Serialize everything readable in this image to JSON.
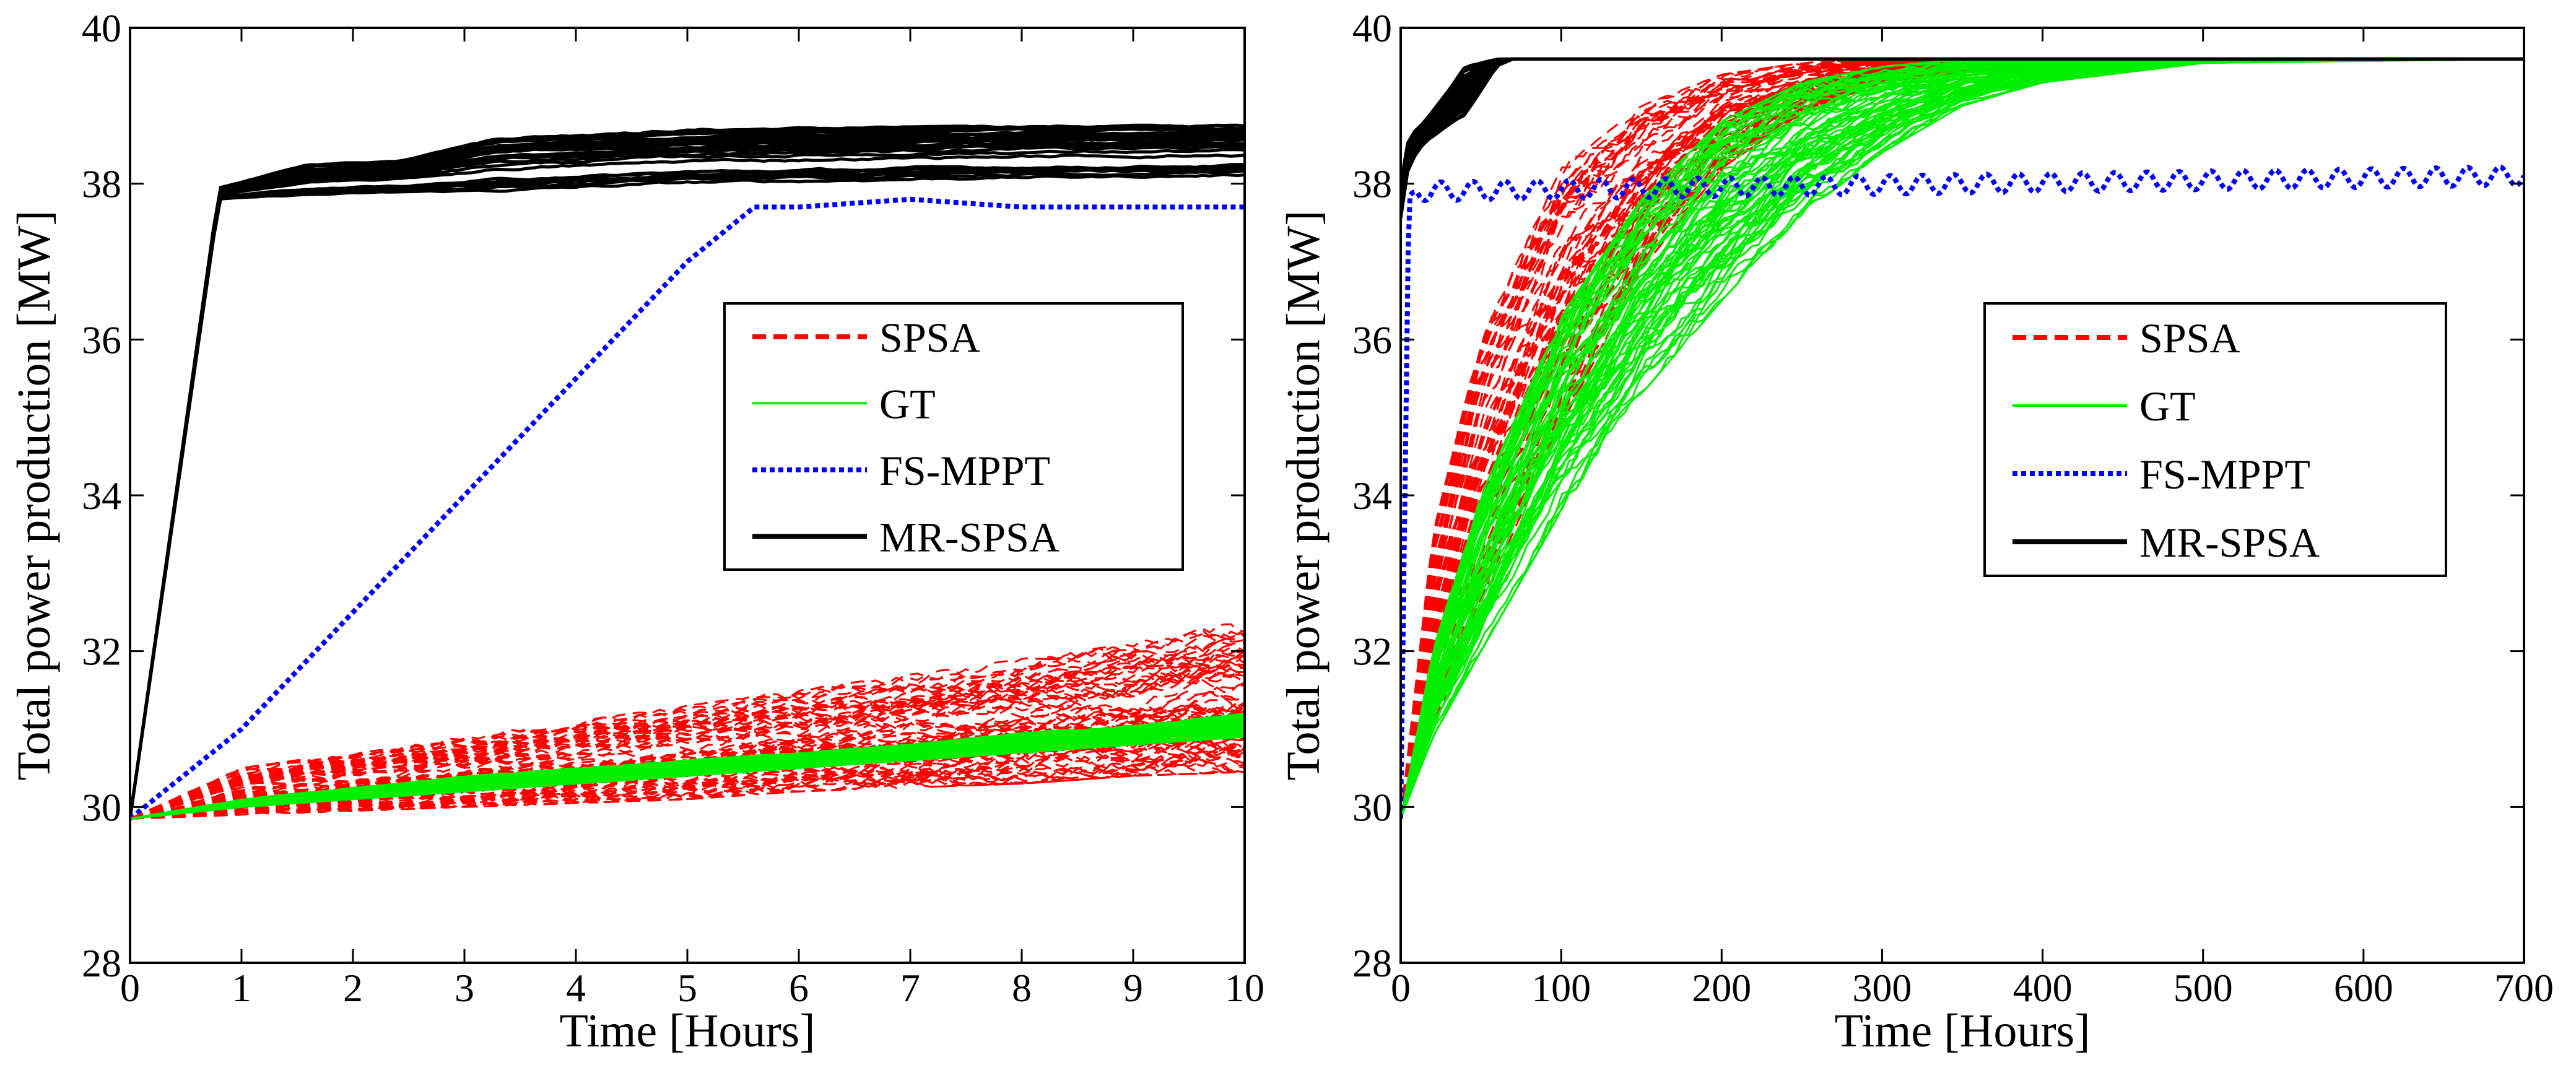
{
  "chart_data": [
    {
      "type": "line",
      "xlabel": "Time [Hours]",
      "ylabel": "Total power production [MW]",
      "xlim": [
        0,
        10
      ],
      "ylim": [
        28,
        40
      ],
      "xticks": [
        "0",
        "1",
        "2",
        "3",
        "4",
        "5",
        "6",
        "7",
        "8",
        "9",
        "10"
      ],
      "yticks": [
        "28",
        "30",
        "32",
        "34",
        "36",
        "38",
        "40"
      ],
      "grid": false,
      "legend_position": "center-right",
      "legend": [
        {
          "name": "SPSA",
          "color": "#ff0000",
          "style": "dashed"
        },
        {
          "name": "GT",
          "color": "#00ee00",
          "style": "solid"
        },
        {
          "name": "FS-MPPT",
          "color": "#0000ff",
          "style": "dotted"
        },
        {
          "name": "MR-SPSA",
          "color": "#000000",
          "style": "solid"
        }
      ],
      "series": [
        {
          "name": "MR-SPSA",
          "color": "#000000",
          "style": "solid",
          "band": true,
          "x": [
            0,
            0.8,
            1.6,
            2.4,
            3.3,
            4.2,
            5,
            6,
            7,
            8,
            9,
            10
          ],
          "lower": [
            29.85,
            37.8,
            37.85,
            37.88,
            37.9,
            37.95,
            38.0,
            38.02,
            38.05,
            38.07,
            38.08,
            38.1
          ],
          "upper": [
            29.85,
            37.95,
            38.25,
            38.3,
            38.6,
            38.65,
            38.7,
            38.72,
            38.73,
            38.75,
            38.75,
            38.75
          ]
        },
        {
          "name": "FS-MPPT",
          "color": "#0000ff",
          "style": "dotted",
          "band": false,
          "x": [
            0,
            1,
            2,
            3,
            4,
            5,
            5.6,
            6,
            6.5,
            7,
            7.5,
            8,
            9,
            10
          ],
          "y": [
            29.85,
            31.0,
            32.5,
            34.0,
            35.5,
            37.0,
            37.7,
            37.7,
            37.75,
            37.8,
            37.75,
            37.7,
            37.7,
            37.7
          ]
        },
        {
          "name": "SPSA",
          "color": "#ff0000",
          "style": "dashed",
          "band": true,
          "x": [
            0,
            1,
            2,
            3,
            4,
            5,
            6,
            7,
            8,
            9,
            10
          ],
          "lower": [
            29.85,
            29.9,
            29.95,
            30.0,
            30.05,
            30.1,
            30.2,
            30.25,
            30.3,
            30.4,
            30.45
          ],
          "upper": [
            29.85,
            30.5,
            30.7,
            30.9,
            31.1,
            31.3,
            31.5,
            31.7,
            31.9,
            32.1,
            32.4
          ]
        },
        {
          "name": "GT",
          "color": "#00ee00",
          "style": "solid",
          "band": true,
          "x": [
            0,
            1,
            2,
            3,
            4,
            5,
            6,
            7,
            8,
            9,
            10
          ],
          "lower": [
            29.85,
            30.0,
            30.1,
            30.2,
            30.3,
            30.4,
            30.5,
            30.6,
            30.7,
            30.8,
            30.9
          ],
          "upper": [
            29.85,
            30.1,
            30.25,
            30.4,
            30.5,
            30.6,
            30.7,
            30.8,
            30.95,
            31.05,
            31.2
          ]
        }
      ]
    },
    {
      "type": "line",
      "xlabel": "Time [Hours]",
      "ylabel": "Total power production [MW]",
      "xlim": [
        0,
        700
      ],
      "ylim": [
        28,
        40
      ],
      "xticks": [
        "0",
        "100",
        "200",
        "300",
        "400",
        "500",
        "600",
        "700"
      ],
      "yticks": [
        "28",
        "30",
        "32",
        "34",
        "36",
        "38",
        "40"
      ],
      "grid": false,
      "legend_position": "center-right",
      "legend": [
        {
          "name": "SPSA",
          "color": "#ff0000",
          "style": "dashed"
        },
        {
          "name": "GT",
          "color": "#00ee00",
          "style": "solid"
        },
        {
          "name": "FS-MPPT",
          "color": "#0000ff",
          "style": "dotted"
        },
        {
          "name": "MR-SPSA",
          "color": "#000000",
          "style": "solid"
        }
      ],
      "series": [
        {
          "name": "SPSA",
          "color": "#ff0000",
          "style": "dashed",
          "band": true,
          "x": [
            0,
            20,
            50,
            100,
            150,
            200,
            250,
            300,
            400,
            500,
            700
          ],
          "lower": [
            29.85,
            31.0,
            32.6,
            34.9,
            36.9,
            38.2,
            38.9,
            39.3,
            39.55,
            39.6,
            39.6
          ],
          "upper": [
            29.85,
            33.5,
            36.0,
            38.2,
            39.0,
            39.4,
            39.55,
            39.6,
            39.6,
            39.6,
            39.6
          ]
        },
        {
          "name": "GT",
          "color": "#00ee00",
          "style": "solid",
          "band": true,
          "x": [
            0,
            20,
            50,
            100,
            150,
            200,
            250,
            300,
            350,
            400,
            500,
            700
          ],
          "lower": [
            29.85,
            30.9,
            32.0,
            33.8,
            35.3,
            36.5,
            37.6,
            38.4,
            39.0,
            39.3,
            39.55,
            39.6
          ],
          "upper": [
            29.85,
            32.0,
            34.0,
            36.3,
            37.8,
            38.8,
            39.3,
            39.5,
            39.6,
            39.6,
            39.6,
            39.6
          ]
        },
        {
          "name": "MR-SPSA",
          "color": "#000000",
          "style": "solid",
          "band": true,
          "x": [
            0,
            5,
            15,
            30,
            40,
            60,
            70,
            700
          ],
          "lower": [
            37.5,
            38.2,
            38.5,
            38.7,
            38.8,
            39.5,
            39.6,
            39.6
          ],
          "upper": [
            38.0,
            38.6,
            38.8,
            39.2,
            39.5,
            39.6,
            39.6,
            39.6
          ]
        },
        {
          "name": "FS-MPPT",
          "color": "#0000ff",
          "style": "dotted",
          "band": false,
          "x": [
            0,
            2,
            5,
            10,
            700
          ],
          "y": [
            29.85,
            33.0,
            37.7,
            37.9,
            38.1
          ],
          "oscillation_amplitude": 0.12,
          "oscillation_period": 20
        }
      ]
    }
  ]
}
